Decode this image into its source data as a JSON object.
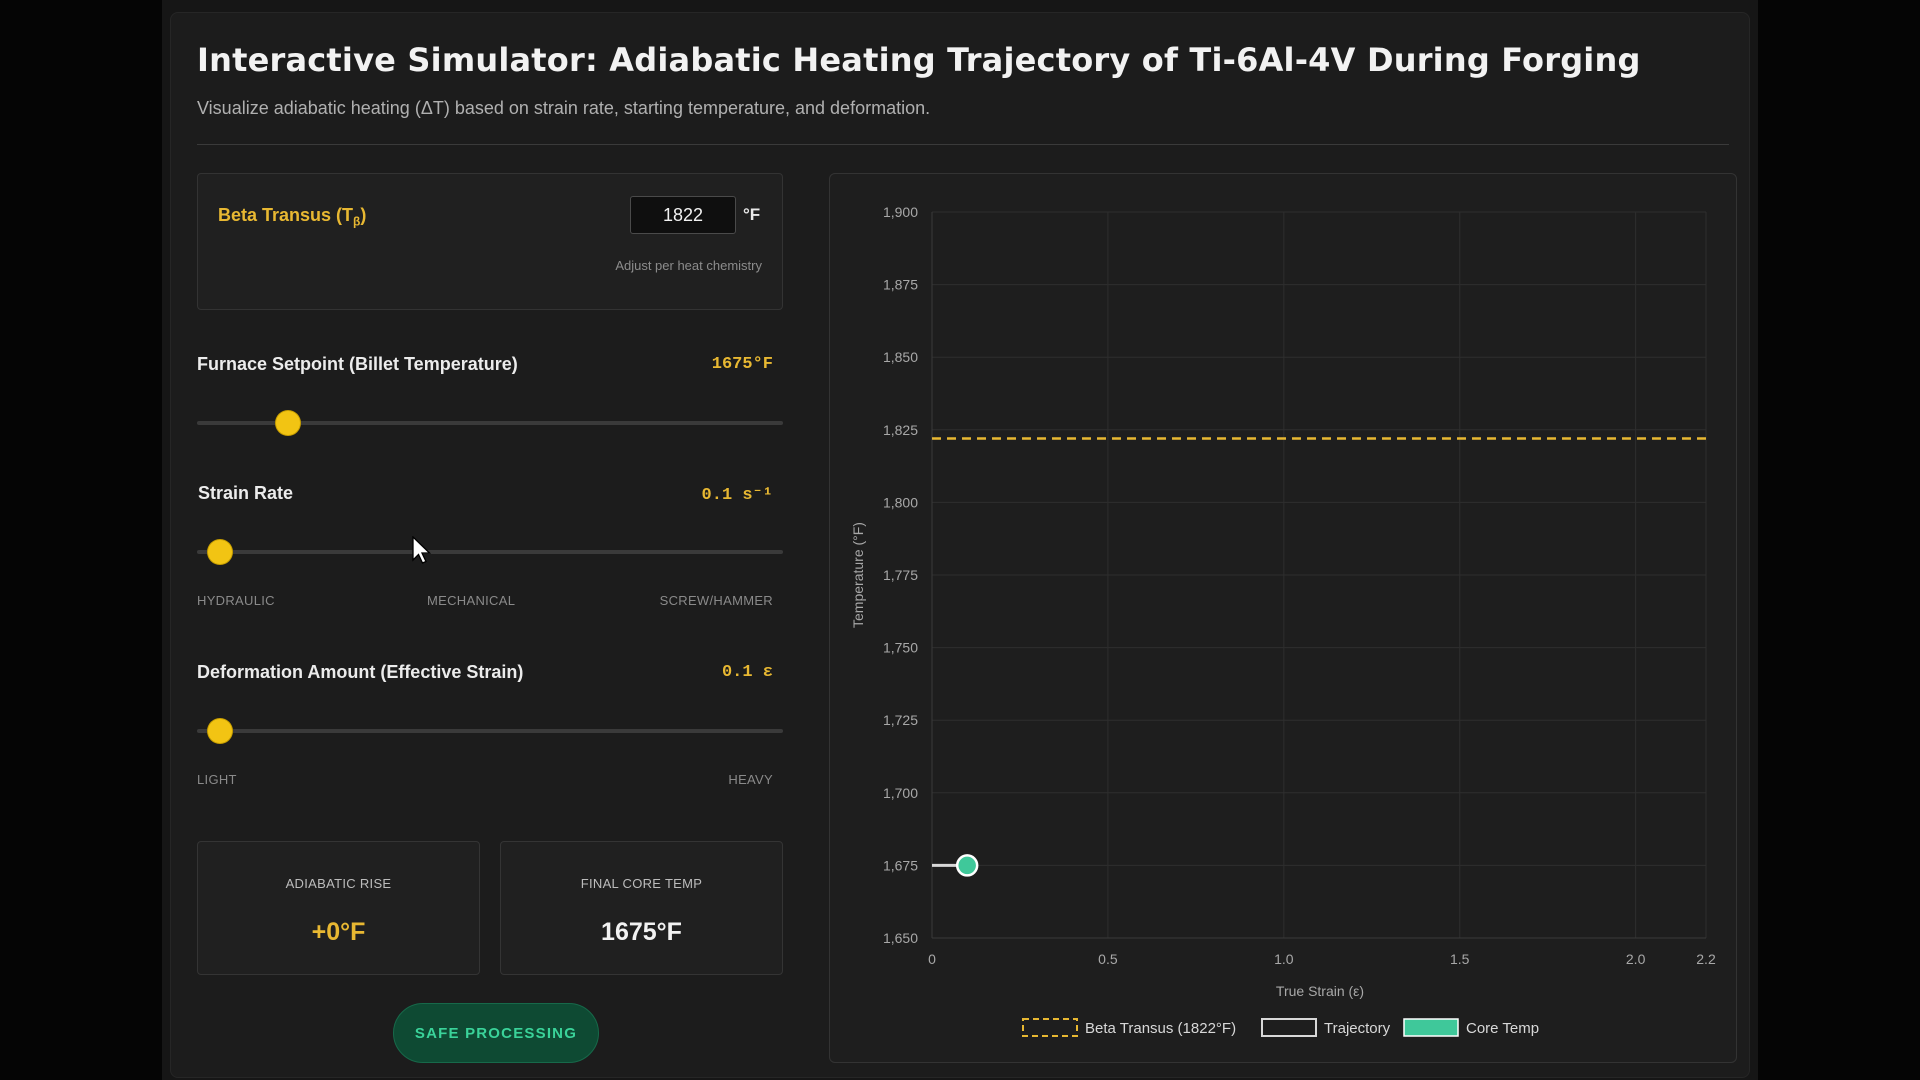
{
  "header": {
    "title": "Interactive Simulator: Adiabatic Heating Trajectory of Ti-6Al-4V During Forging",
    "subtitle": "Visualize adiabatic heating (ΔT) based on strain rate, starting temperature, and deformation."
  },
  "beta_transus": {
    "label_main": "Beta Transus (T",
    "label_sub": "β",
    "label_end": ")",
    "value": "1822",
    "unit": "°F",
    "hint": "Adjust per heat chemistry"
  },
  "furnace": {
    "label": "Furnace Setpoint (Billet Temperature)",
    "value_text": "1675°F",
    "slider_fraction": 0.14
  },
  "strain_rate": {
    "label": "Strain Rate",
    "value_text": "0.1 s⁻¹",
    "slider_fraction": 0.02,
    "ticks": [
      "HYDRAULIC",
      "MECHANICAL",
      "SCREW/HAMMER"
    ]
  },
  "deformation": {
    "label": "Deformation Amount (Effective Strain)",
    "value_text": "0.1 ε",
    "slider_fraction": 0.02,
    "ticks": [
      "LIGHT",
      "HEAVY"
    ]
  },
  "results": {
    "adiabatic_rise": {
      "label": "ADIABATIC RISE",
      "value": "+0°F"
    },
    "final_core_temp": {
      "label": "FINAL CORE TEMP",
      "value": "1675°F"
    }
  },
  "status": {
    "label": "SAFE PROCESSING"
  },
  "colors": {
    "accent": "#e8b832",
    "safe": "#3ad39a",
    "trajectory": "#d8d8d8",
    "core": "#3fc89a"
  },
  "chart_data": {
    "type": "line",
    "xlabel": "True Strain (ε)",
    "ylabel": "Temperature (°F)",
    "xlim": [
      0,
      2.2
    ],
    "ylim": [
      1650,
      1900
    ],
    "x_ticks": [
      0,
      0.5,
      1.0,
      1.5,
      2.0,
      2.2
    ],
    "x_tick_labels": [
      "0",
      "0.5",
      "1.0",
      "1.5",
      "2.0",
      "2.2"
    ],
    "y_ticks": [
      1650,
      1675,
      1700,
      1725,
      1750,
      1775,
      1800,
      1825,
      1850,
      1875,
      1900
    ],
    "y_tick_labels": [
      "1,650",
      "1,675",
      "1,700",
      "1,725",
      "1,750",
      "1,775",
      "1,800",
      "1,825",
      "1,850",
      "1,875",
      "1,900"
    ],
    "grid": true,
    "legend_position": "bottom",
    "series": [
      {
        "name": "Beta Transus (1822°F)",
        "style": "dashed",
        "x": [
          0,
          2.2
        ],
        "y": [
          1822,
          1822
        ]
      },
      {
        "name": "Trajectory",
        "style": "line",
        "x": [
          0,
          0.1
        ],
        "y": [
          1675,
          1675
        ]
      },
      {
        "name": "Core Temp",
        "style": "point",
        "x": [
          0.1
        ],
        "y": [
          1675
        ]
      }
    ]
  }
}
